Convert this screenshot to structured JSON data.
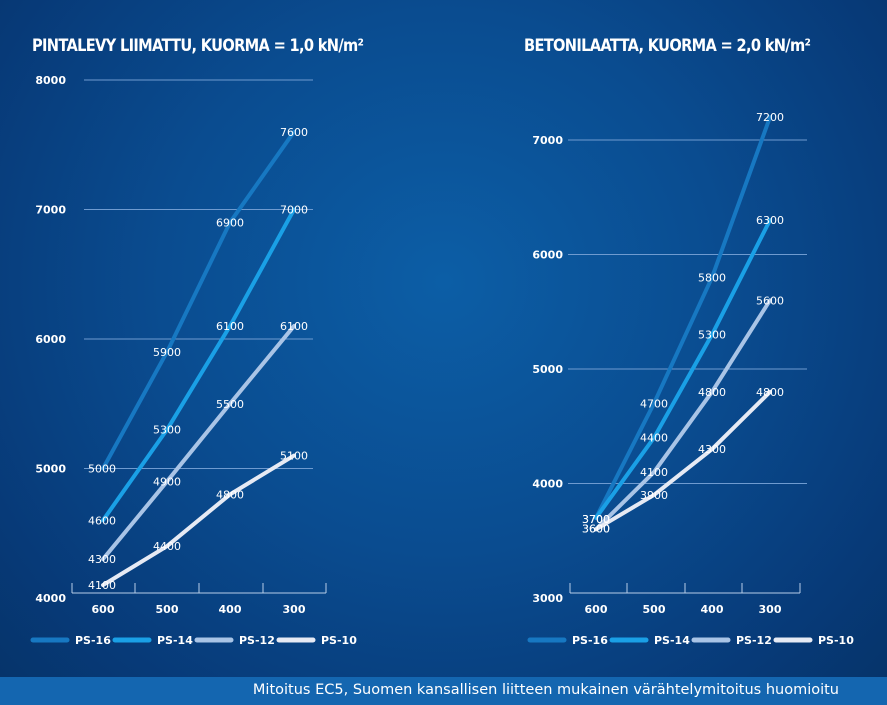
{
  "chart_data": [
    {
      "type": "line",
      "title": "PINTALEVY LIIMATTU, KUORMA = 1,0 kN/m²",
      "categories": [
        "600",
        "500",
        "400",
        "300"
      ],
      "ylim": [
        4000,
        8000
      ],
      "yticks": [
        "4000",
        "5000",
        "6000",
        "7000",
        "8000"
      ],
      "grid": true,
      "legend_position": "bottom",
      "series": [
        {
          "name": "PS-16",
          "color": "#1778c2",
          "values": [
            5000,
            5900,
            6900,
            7600
          ]
        },
        {
          "name": "PS-14",
          "color": "#1aa0e6",
          "values": [
            4600,
            5300,
            6100,
            7000
          ]
        },
        {
          "name": "PS-12",
          "color": "#a9c4e6",
          "values": [
            4300,
            4900,
            5500,
            6100
          ]
        },
        {
          "name": "PS-10",
          "color": "#e6eaf4",
          "values": [
            4100,
            4400,
            4800,
            5100
          ]
        }
      ]
    },
    {
      "type": "line",
      "title": "BETONILAATTA,  KUORMA = 2,0 kN/m²",
      "categories": [
        "600",
        "500",
        "400",
        "300"
      ],
      "ylim": [
        3000,
        7500
      ],
      "yticks": [
        "3000",
        "4000",
        "5000",
        "6000",
        "7000"
      ],
      "grid": true,
      "legend_position": "bottom",
      "series": [
        {
          "name": "PS-16",
          "color": "#1778c2",
          "values": [
            3700,
            4700,
            5800,
            7200
          ]
        },
        {
          "name": "PS-14",
          "color": "#1aa0e6",
          "values": [
            3700,
            4400,
            5300,
            6300
          ]
        },
        {
          "name": "PS-12",
          "color": "#a9c4e6",
          "values": [
            3600,
            4100,
            4800,
            5600
          ]
        },
        {
          "name": "PS-10",
          "color": "#e6eaf4",
          "values": [
            3600,
            3900,
            4300,
            4800
          ]
        }
      ]
    }
  ],
  "footer": {
    "note": "Mitoitus EC5, Suomen kansallisen liitteen mukainen värähtelymitoitus huomioitu"
  }
}
